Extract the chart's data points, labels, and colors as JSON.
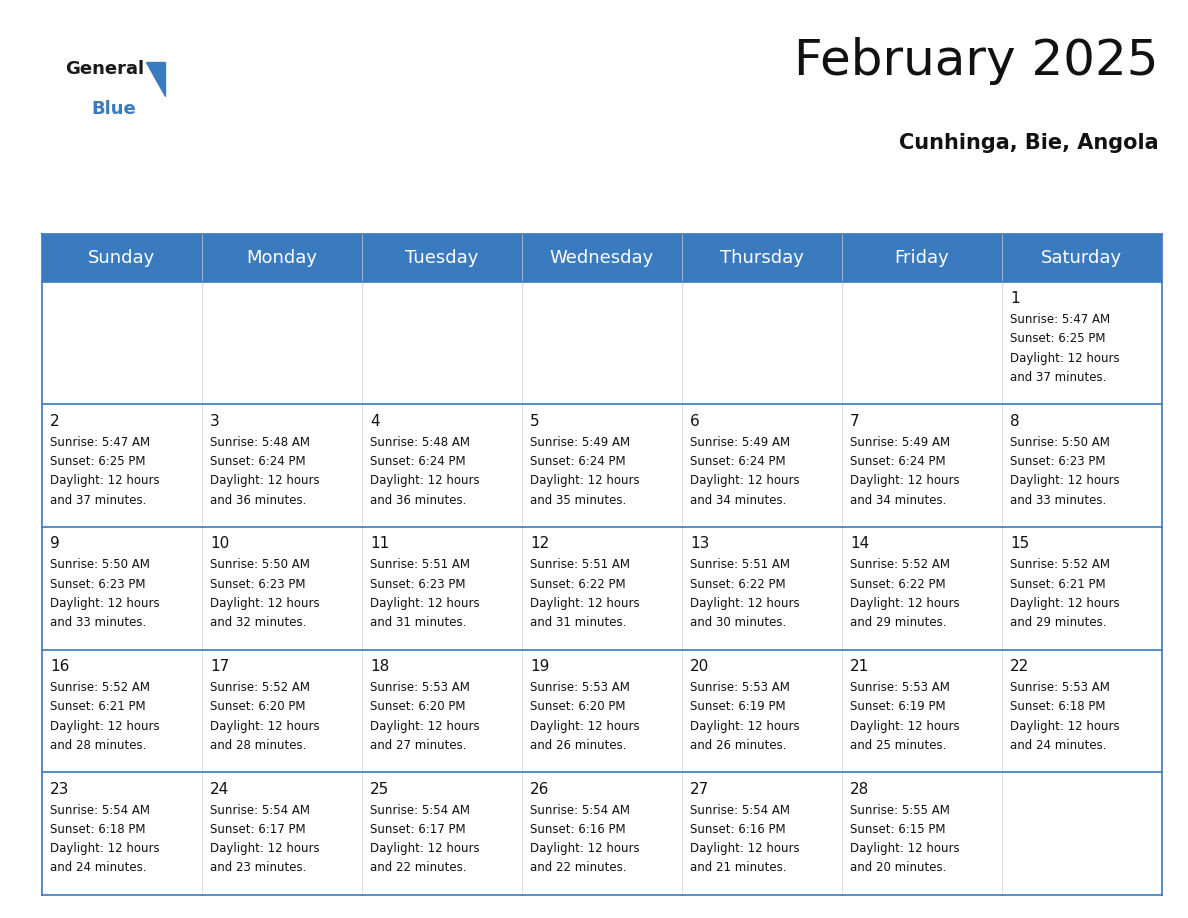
{
  "title": "February 2025",
  "subtitle": "Cunhinga, Bie, Angola",
  "header_color": "#3a7abf",
  "header_text_color": "#ffffff",
  "day_names": [
    "Sunday",
    "Monday",
    "Tuesday",
    "Wednesday",
    "Thursday",
    "Friday",
    "Saturday"
  ],
  "title_fontsize": 36,
  "subtitle_fontsize": 15,
  "header_fontsize": 13,
  "day_num_fontsize": 11,
  "cell_fontsize": 8.5,
  "calendar": [
    [
      null,
      null,
      null,
      null,
      null,
      null,
      {
        "day": 1,
        "sunrise": "5:47 AM",
        "sunset": "6:25 PM",
        "daylight_hours": 12,
        "daylight_minutes": 37
      }
    ],
    [
      {
        "day": 2,
        "sunrise": "5:47 AM",
        "sunset": "6:25 PM",
        "daylight_hours": 12,
        "daylight_minutes": 37
      },
      {
        "day": 3,
        "sunrise": "5:48 AM",
        "sunset": "6:24 PM",
        "daylight_hours": 12,
        "daylight_minutes": 36
      },
      {
        "day": 4,
        "sunrise": "5:48 AM",
        "sunset": "6:24 PM",
        "daylight_hours": 12,
        "daylight_minutes": 36
      },
      {
        "day": 5,
        "sunrise": "5:49 AM",
        "sunset": "6:24 PM",
        "daylight_hours": 12,
        "daylight_minutes": 35
      },
      {
        "day": 6,
        "sunrise": "5:49 AM",
        "sunset": "6:24 PM",
        "daylight_hours": 12,
        "daylight_minutes": 34
      },
      {
        "day": 7,
        "sunrise": "5:49 AM",
        "sunset": "6:24 PM",
        "daylight_hours": 12,
        "daylight_minutes": 34
      },
      {
        "day": 8,
        "sunrise": "5:50 AM",
        "sunset": "6:23 PM",
        "daylight_hours": 12,
        "daylight_minutes": 33
      }
    ],
    [
      {
        "day": 9,
        "sunrise": "5:50 AM",
        "sunset": "6:23 PM",
        "daylight_hours": 12,
        "daylight_minutes": 33
      },
      {
        "day": 10,
        "sunrise": "5:50 AM",
        "sunset": "6:23 PM",
        "daylight_hours": 12,
        "daylight_minutes": 32
      },
      {
        "day": 11,
        "sunrise": "5:51 AM",
        "sunset": "6:23 PM",
        "daylight_hours": 12,
        "daylight_minutes": 31
      },
      {
        "day": 12,
        "sunrise": "5:51 AM",
        "sunset": "6:22 PM",
        "daylight_hours": 12,
        "daylight_minutes": 31
      },
      {
        "day": 13,
        "sunrise": "5:51 AM",
        "sunset": "6:22 PM",
        "daylight_hours": 12,
        "daylight_minutes": 30
      },
      {
        "day": 14,
        "sunrise": "5:52 AM",
        "sunset": "6:22 PM",
        "daylight_hours": 12,
        "daylight_minutes": 29
      },
      {
        "day": 15,
        "sunrise": "5:52 AM",
        "sunset": "6:21 PM",
        "daylight_hours": 12,
        "daylight_minutes": 29
      }
    ],
    [
      {
        "day": 16,
        "sunrise": "5:52 AM",
        "sunset": "6:21 PM",
        "daylight_hours": 12,
        "daylight_minutes": 28
      },
      {
        "day": 17,
        "sunrise": "5:52 AM",
        "sunset": "6:20 PM",
        "daylight_hours": 12,
        "daylight_minutes": 28
      },
      {
        "day": 18,
        "sunrise": "5:53 AM",
        "sunset": "6:20 PM",
        "daylight_hours": 12,
        "daylight_minutes": 27
      },
      {
        "day": 19,
        "sunrise": "5:53 AM",
        "sunset": "6:20 PM",
        "daylight_hours": 12,
        "daylight_minutes": 26
      },
      {
        "day": 20,
        "sunrise": "5:53 AM",
        "sunset": "6:19 PM",
        "daylight_hours": 12,
        "daylight_minutes": 26
      },
      {
        "day": 21,
        "sunrise": "5:53 AM",
        "sunset": "6:19 PM",
        "daylight_hours": 12,
        "daylight_minutes": 25
      },
      {
        "day": 22,
        "sunrise": "5:53 AM",
        "sunset": "6:18 PM",
        "daylight_hours": 12,
        "daylight_minutes": 24
      }
    ],
    [
      {
        "day": 23,
        "sunrise": "5:54 AM",
        "sunset": "6:18 PM",
        "daylight_hours": 12,
        "daylight_minutes": 24
      },
      {
        "day": 24,
        "sunrise": "5:54 AM",
        "sunset": "6:17 PM",
        "daylight_hours": 12,
        "daylight_minutes": 23
      },
      {
        "day": 25,
        "sunrise": "5:54 AM",
        "sunset": "6:17 PM",
        "daylight_hours": 12,
        "daylight_minutes": 22
      },
      {
        "day": 26,
        "sunrise": "5:54 AM",
        "sunset": "6:16 PM",
        "daylight_hours": 12,
        "daylight_minutes": 22
      },
      {
        "day": 27,
        "sunrise": "5:54 AM",
        "sunset": "6:16 PM",
        "daylight_hours": 12,
        "daylight_minutes": 21
      },
      {
        "day": 28,
        "sunrise": "5:55 AM",
        "sunset": "6:15 PM",
        "daylight_hours": 12,
        "daylight_minutes": 20
      },
      null
    ]
  ]
}
